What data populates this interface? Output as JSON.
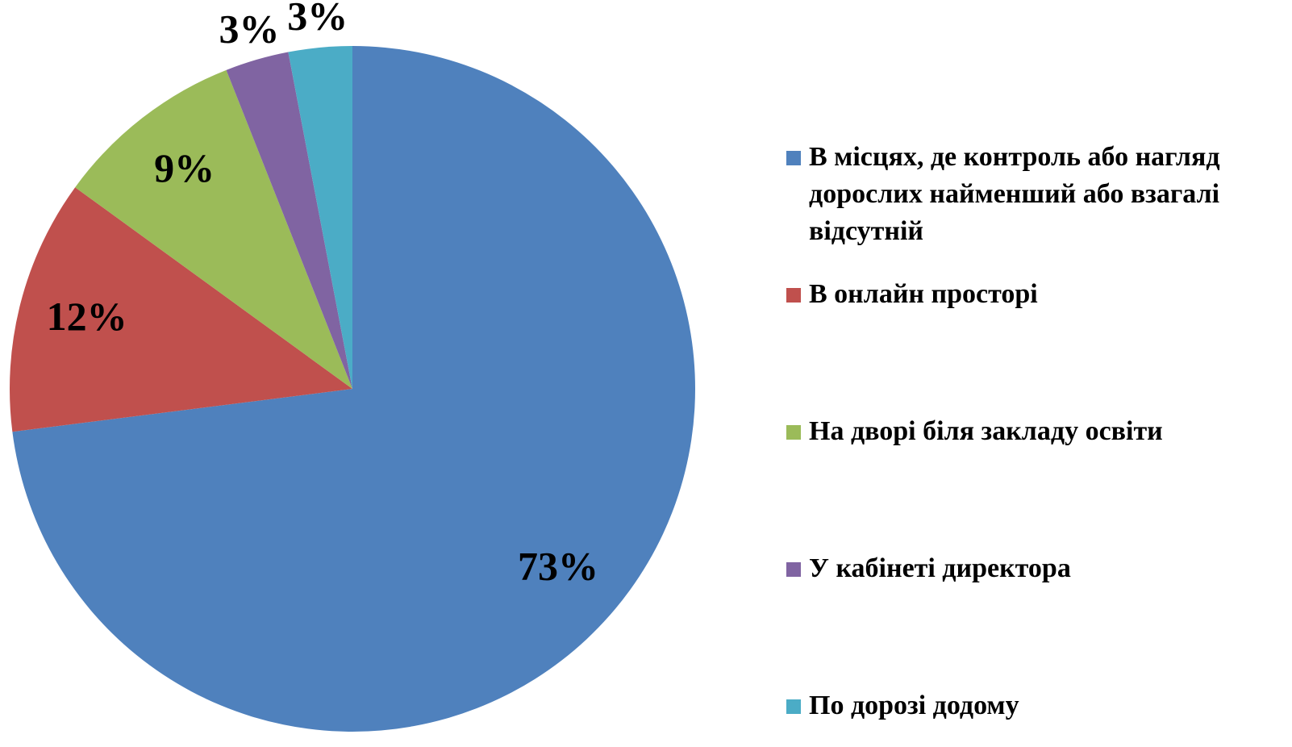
{
  "chart_data": {
    "type": "pie",
    "categories": [
      "В місцях, де контроль або нагляд дорослих найменший або взагалі відсутній",
      "В онлайн просторі",
      "На дворі біля закладу освіти",
      "У кабінеті директора",
      "По дорозі додому"
    ],
    "values": [
      73,
      12,
      9,
      3,
      3
    ],
    "value_labels": [
      "73%",
      "12%",
      "9%",
      "3%",
      "3%"
    ],
    "colors": [
      "#4f81bd",
      "#c0504d",
      "#9bbb59",
      "#8064a2",
      "#4bacc6"
    ],
    "legend": "right"
  }
}
